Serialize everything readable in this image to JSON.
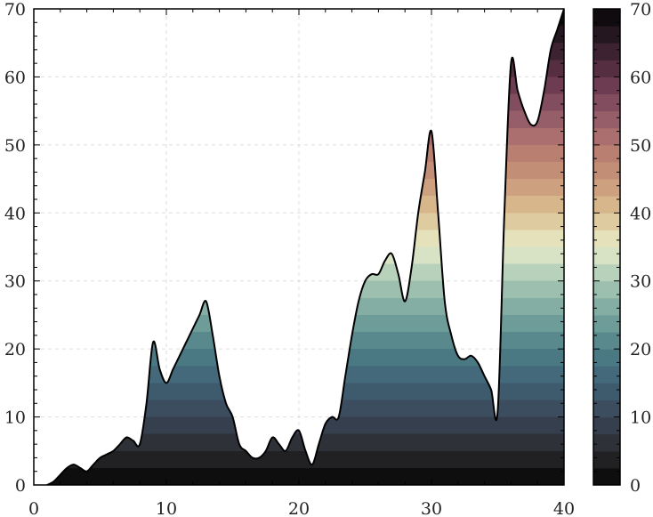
{
  "chart_data": {
    "type": "area",
    "title": "",
    "xlabel": "",
    "ylabel": "",
    "xlim": [
      0,
      40
    ],
    "ylim": [
      0,
      70
    ],
    "x_ticks": [
      "0",
      "10",
      "20",
      "30",
      "40"
    ],
    "y_ticks": [
      "0",
      "10",
      "20",
      "30",
      "40",
      "50",
      "60",
      "70"
    ],
    "grid": true,
    "fill": "vertical gradient mapped to colorbar",
    "colorbar": {
      "range": [
        0,
        70
      ],
      "ticks": [
        "0",
        "10",
        "20",
        "30",
        "40",
        "50",
        "60",
        "70"
      ],
      "levels": 28,
      "stops": [
        {
          "v": 0,
          "color": "#050505"
        },
        {
          "v": 5,
          "color": "#2a2a2e"
        },
        {
          "v": 10,
          "color": "#3a4657"
        },
        {
          "v": 15,
          "color": "#3f6275"
        },
        {
          "v": 20,
          "color": "#4e7f87"
        },
        {
          "v": 25,
          "color": "#78a59d"
        },
        {
          "v": 30,
          "color": "#a8c8b5"
        },
        {
          "v": 35,
          "color": "#e6ecc9"
        },
        {
          "v": 40,
          "color": "#ddc092"
        },
        {
          "v": 45,
          "color": "#c79778"
        },
        {
          "v": 50,
          "color": "#b47870"
        },
        {
          "v": 55,
          "color": "#8c5566"
        },
        {
          "v": 60,
          "color": "#63344b"
        },
        {
          "v": 65,
          "color": "#301d28"
        },
        {
          "v": 70,
          "color": "#050505"
        }
      ]
    },
    "series": [
      {
        "x": [
          1,
          1.5,
          2,
          2.5,
          3,
          3.5,
          4,
          4.5,
          5,
          5.5,
          6,
          6.5,
          7,
          7.5,
          8,
          8.5,
          9,
          9.5,
          10,
          10.5,
          11,
          11.5,
          12,
          12.5,
          13,
          13.5,
          14,
          14.5,
          15,
          15.5,
          16,
          16.5,
          17,
          17.5,
          18,
          18.5,
          19,
          19.5,
          20,
          20.5,
          21,
          21.5,
          22,
          22.5,
          23,
          23.5,
          24,
          24.5,
          25,
          25.5,
          26,
          26.5,
          27,
          27.5,
          28,
          28.5,
          29,
          29.5,
          30,
          30.5,
          31,
          31.5,
          32,
          32.5,
          33,
          33.5,
          34,
          34.5,
          35,
          35.5,
          36,
          36.5,
          37,
          37.5,
          38,
          38.5,
          39,
          39.5,
          40
        ],
        "y": [
          0,
          0.5,
          1.5,
          2.5,
          3,
          2.5,
          2,
          3,
          4,
          4.5,
          5,
          6,
          7,
          6.5,
          6,
          12,
          21,
          17,
          15,
          17,
          19,
          21,
          23,
          25,
          27,
          22,
          16,
          12,
          10,
          6,
          5,
          4,
          4,
          5,
          7,
          6,
          5,
          7,
          8,
          5,
          3,
          6,
          9,
          10,
          10,
          16,
          22,
          27,
          30,
          31,
          31,
          33,
          34,
          31,
          27,
          32,
          40,
          46,
          52,
          40,
          27,
          22,
          19,
          18.5,
          19,
          18,
          16,
          14,
          11,
          40,
          62,
          58,
          55,
          53,
          53.5,
          58,
          64,
          67,
          70
        ]
      }
    ]
  }
}
